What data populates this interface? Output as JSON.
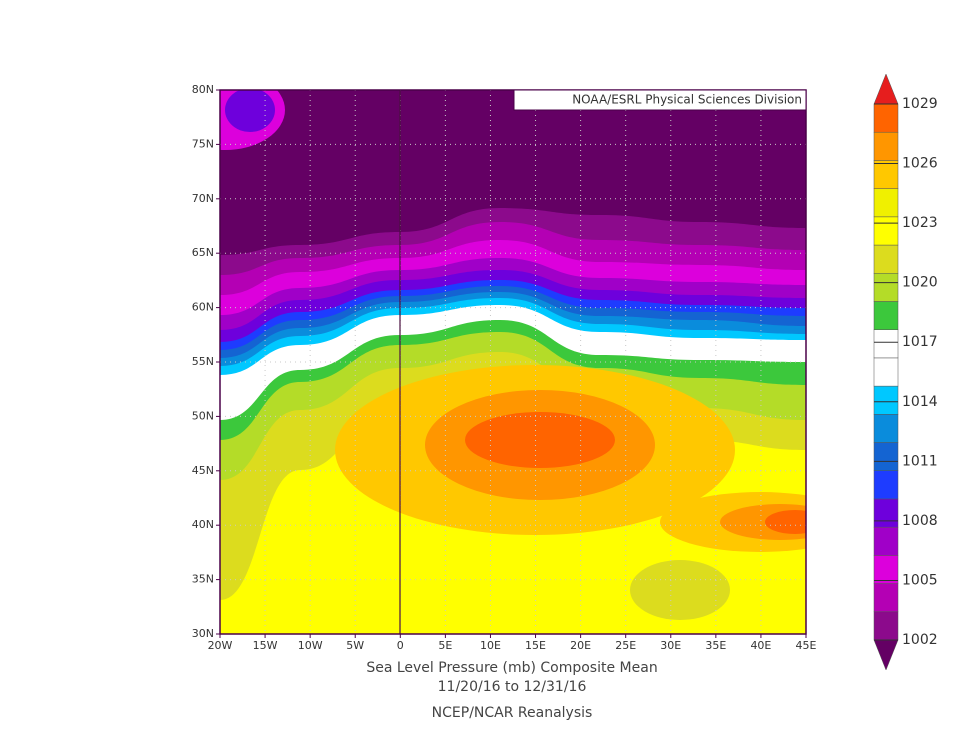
{
  "map": {
    "credit": "NOAA/ESRL Physical Sciences Division",
    "title": "Sea Level Pressure (mb) Composite Mean",
    "subtitle": "11/20/16  to 12/31/16",
    "source": "NCEP/NCAR Reanalysis",
    "xlim": [
      -20,
      45
    ],
    "ylim": [
      30,
      80
    ],
    "xticks": [
      {
        "value": -20,
        "label": "20W"
      },
      {
        "value": -15,
        "label": "15W"
      },
      {
        "value": -10,
        "label": "10W"
      },
      {
        "value": -5,
        "label": "5W"
      },
      0,
      {
        "value": 5,
        "label": "5E"
      },
      {
        "value": 10,
        "label": "10E"
      },
      {
        "value": 15,
        "label": "15E"
      },
      {
        "value": 20,
        "label": "20E"
      },
      {
        "value": 25,
        "label": "25E"
      },
      {
        "value": 30,
        "label": "30E"
      },
      {
        "value": 35,
        "label": "35E"
      },
      {
        "value": 40,
        "label": "40E"
      },
      {
        "value": 45,
        "label": "45E"
      }
    ],
    "yticks": [
      {
        "value": 30,
        "label": "30N"
      },
      {
        "value": 35,
        "label": "35N"
      },
      {
        "value": 40,
        "label": "40N"
      },
      {
        "value": 45,
        "label": "45N"
      },
      {
        "value": 50,
        "label": "50N"
      },
      {
        "value": 55,
        "label": "55N"
      },
      {
        "value": 60,
        "label": "60N"
      },
      {
        "value": 65,
        "label": "65N"
      },
      {
        "value": 70,
        "label": "70N"
      },
      {
        "value": 75,
        "label": "75N"
      },
      {
        "value": 80,
        "label": "80N"
      }
    ],
    "grid": true,
    "colorbar": {
      "ticks": [
        1002,
        1005,
        1008,
        1011,
        1014,
        1017,
        1020,
        1023,
        1026,
        1029
      ],
      "colors": [
        "#640064",
        "#8c0a8c",
        "#b400b4",
        "#dc00dc",
        "#a000c8",
        "#6e00dc",
        "#1e3cff",
        "#1464d2",
        "#0a8cdc",
        "#00c8ff",
        "#ffffff",
        "#ffffff",
        "#3cc83c",
        "#b4dc28",
        "#dcdc1e",
        "#ffff00",
        "#f0f000",
        "#ffc800",
        "#ff9600",
        "#ff6400",
        "#e61e1e"
      ]
    }
  }
}
